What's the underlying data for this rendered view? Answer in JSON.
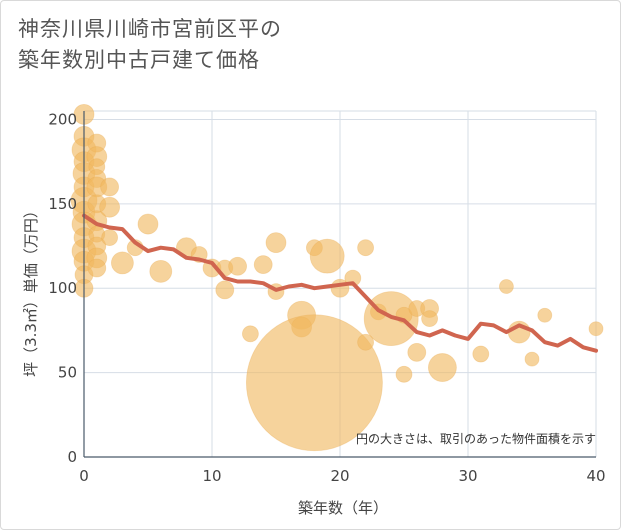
{
  "title_lines": [
    "神奈川県川崎市宮前区平の",
    "築年数別中古戸建て価格"
  ],
  "chart_data": {
    "type": "scatter",
    "xlabel": "築年数（年）",
    "ylabel": "坪（3.3㎡）単価（万円）",
    "xlim": [
      0,
      40
    ],
    "ylim": [
      0,
      205
    ],
    "xticks": [
      "0",
      "10",
      "20",
      "30",
      "40"
    ],
    "yticks": [
      "0",
      "50",
      "100",
      "150",
      "200"
    ],
    "note": "円の大きさは、取引のあった物件面積を示す",
    "grid": true,
    "colors": {
      "bubble": "#f0b860",
      "line": "#d0654f",
      "grid": "#d6dde6",
      "axis": "#4a5a6a"
    },
    "bubbles": [
      {
        "x": 0,
        "y": 203,
        "s": 10
      },
      {
        "x": 0,
        "y": 190,
        "s": 10
      },
      {
        "x": 0,
        "y": 182,
        "s": 12
      },
      {
        "x": 0,
        "y": 175,
        "s": 10
      },
      {
        "x": 0,
        "y": 168,
        "s": 11
      },
      {
        "x": 0,
        "y": 160,
        "s": 10
      },
      {
        "x": 0,
        "y": 152,
        "s": 13
      },
      {
        "x": 0,
        "y": 145,
        "s": 11
      },
      {
        "x": 0,
        "y": 138,
        "s": 12
      },
      {
        "x": 0,
        "y": 130,
        "s": 10
      },
      {
        "x": 0,
        "y": 122,
        "s": 12
      },
      {
        "x": 0,
        "y": 116,
        "s": 10
      },
      {
        "x": 0,
        "y": 108,
        "s": 9
      },
      {
        "x": 0,
        "y": 100,
        "s": 9
      },
      {
        "x": 1,
        "y": 186,
        "s": 9
      },
      {
        "x": 1,
        "y": 178,
        "s": 10
      },
      {
        "x": 1,
        "y": 172,
        "s": 8
      },
      {
        "x": 1,
        "y": 165,
        "s": 9
      },
      {
        "x": 1,
        "y": 160,
        "s": 10
      },
      {
        "x": 1,
        "y": 150,
        "s": 9
      },
      {
        "x": 1,
        "y": 140,
        "s": 10
      },
      {
        "x": 1,
        "y": 132,
        "s": 8
      },
      {
        "x": 1,
        "y": 125,
        "s": 9
      },
      {
        "x": 1,
        "y": 118,
        "s": 10
      },
      {
        "x": 1,
        "y": 112,
        "s": 9
      },
      {
        "x": 2,
        "y": 160,
        "s": 9
      },
      {
        "x": 2,
        "y": 148,
        "s": 10
      },
      {
        "x": 2,
        "y": 130,
        "s": 8
      },
      {
        "x": 3,
        "y": 115,
        "s": 11
      },
      {
        "x": 4,
        "y": 124,
        "s": 8
      },
      {
        "x": 5,
        "y": 138,
        "s": 10
      },
      {
        "x": 6,
        "y": 110,
        "s": 11
      },
      {
        "x": 8,
        "y": 124,
        "s": 10
      },
      {
        "x": 9,
        "y": 120,
        "s": 8
      },
      {
        "x": 10,
        "y": 112,
        "s": 9
      },
      {
        "x": 11,
        "y": 99,
        "s": 9
      },
      {
        "x": 11,
        "y": 112,
        "s": 8
      },
      {
        "x": 12,
        "y": 113,
        "s": 9
      },
      {
        "x": 13,
        "y": 73,
        "s": 8
      },
      {
        "x": 14,
        "y": 114,
        "s": 9
      },
      {
        "x": 15,
        "y": 98,
        "s": 8
      },
      {
        "x": 15,
        "y": 127,
        "s": 10
      },
      {
        "x": 17,
        "y": 84,
        "s": 14
      },
      {
        "x": 17,
        "y": 77,
        "s": 10
      },
      {
        "x": 18,
        "y": 124,
        "s": 8
      },
      {
        "x": 18,
        "y": 44,
        "s": 68
      },
      {
        "x": 19,
        "y": 119,
        "s": 17
      },
      {
        "x": 20,
        "y": 100,
        "s": 9
      },
      {
        "x": 21,
        "y": 106,
        "s": 8
      },
      {
        "x": 22,
        "y": 124,
        "s": 8
      },
      {
        "x": 22,
        "y": 68,
        "s": 8
      },
      {
        "x": 23,
        "y": 86,
        "s": 8
      },
      {
        "x": 24,
        "y": 82,
        "s": 27
      },
      {
        "x": 25,
        "y": 49,
        "s": 8
      },
      {
        "x": 25,
        "y": 84,
        "s": 8
      },
      {
        "x": 26,
        "y": 88,
        "s": 8
      },
      {
        "x": 26,
        "y": 62,
        "s": 9
      },
      {
        "x": 27,
        "y": 88,
        "s": 9
      },
      {
        "x": 27,
        "y": 82,
        "s": 8
      },
      {
        "x": 28,
        "y": 53,
        "s": 14
      },
      {
        "x": 31,
        "y": 61,
        "s": 8
      },
      {
        "x": 33,
        "y": 101,
        "s": 7
      },
      {
        "x": 34,
        "y": 74,
        "s": 11
      },
      {
        "x": 35,
        "y": 58,
        "s": 7
      },
      {
        "x": 36,
        "y": 84,
        "s": 7
      },
      {
        "x": 40,
        "y": 76,
        "s": 7
      }
    ],
    "trend": {
      "x": [
        0,
        1,
        2,
        3,
        4,
        5,
        6,
        7,
        8,
        9,
        10,
        11,
        12,
        13,
        14,
        15,
        16,
        17,
        18,
        19,
        20,
        21,
        22,
        23,
        24,
        25,
        26,
        27,
        28,
        29,
        30,
        31,
        32,
        33,
        34,
        35,
        36,
        37,
        38,
        39,
        40
      ],
      "y": [
        143,
        138,
        136,
        135,
        127,
        122,
        124,
        123,
        118,
        117,
        115,
        106,
        104,
        104,
        103,
        99,
        101,
        102,
        100,
        101,
        102,
        103,
        95,
        87,
        83,
        81,
        74,
        72,
        75,
        72,
        70,
        79,
        78,
        74,
        78,
        75,
        68,
        66,
        70,
        65,
        63
      ]
    }
  }
}
